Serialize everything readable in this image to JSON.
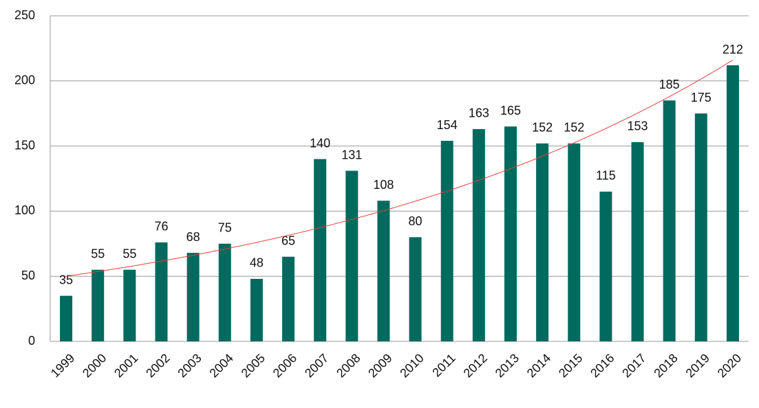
{
  "chart_data": {
    "type": "bar",
    "categories": [
      "1999",
      "2000",
      "2001",
      "2002",
      "2003",
      "2004",
      "2005",
      "2006",
      "2007",
      "2008",
      "2009",
      "2010",
      "2011",
      "2012",
      "2013",
      "2014",
      "2015",
      "2016",
      "2017",
      "2018",
      "2019",
      "2020"
    ],
    "values": [
      35,
      55,
      55,
      76,
      68,
      75,
      48,
      65,
      140,
      131,
      108,
      80,
      154,
      163,
      165,
      152,
      152,
      115,
      153,
      185,
      175,
      212
    ],
    "color": "#006a5e",
    "ylim": [
      0,
      250
    ],
    "yticks": [
      0,
      50,
      100,
      150,
      200,
      250
    ],
    "grid": true,
    "trendline": "exponential",
    "trendline_color": "#e8413c"
  }
}
